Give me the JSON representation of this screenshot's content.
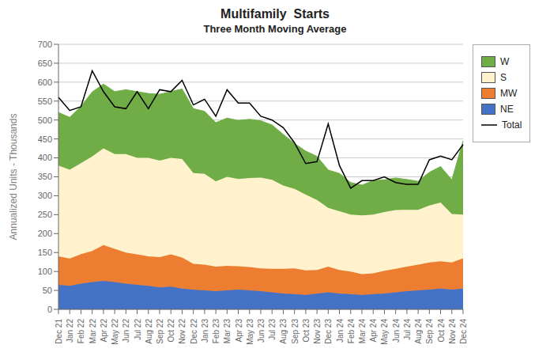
{
  "chart_data": {
    "type": "area",
    "title": "Multifamily  Starts",
    "subtitle": "Three Month Moving Average",
    "ylabel": "Annualized Units - Thousands",
    "stacked": true,
    "grid": true,
    "legend": "right",
    "ylim": [
      0,
      700
    ],
    "yticks": [
      0,
      50,
      100,
      150,
      200,
      250,
      300,
      350,
      400,
      450,
      500,
      550,
      600,
      650,
      700
    ],
    "categories": [
      "Dec 21",
      "Jan 22",
      "Feb 22",
      "Mar 22",
      "Apr 22",
      "May 22",
      "Jun 22",
      "Jul 22",
      "Aug 22",
      "Sep 22",
      "Oct 22",
      "Nov 22",
      "Dec 22",
      "Jan 23",
      "Feb 23",
      "Mar 23",
      "Apr 23",
      "May 23",
      "Jun 23",
      "Jul 23",
      "Aug 23",
      "Sep 23",
      "Oct 23",
      "Nov 23",
      "Dec 23",
      "Jan 24",
      "Feb 24",
      "Mar 24",
      "Apr 24",
      "May 24",
      "Jun 24",
      "Jul 24",
      "Aug 24",
      "Sep 24",
      "Oct 24",
      "Nov 24",
      "Dec 24"
    ],
    "series": [
      {
        "name": "NE",
        "color": "#4472C4",
        "values": [
          65,
          62,
          68,
          72,
          75,
          72,
          68,
          65,
          62,
          58,
          60,
          55,
          52,
          50,
          48,
          50,
          52,
          50,
          48,
          45,
          42,
          40,
          38,
          42,
          45,
          42,
          40,
          38,
          40,
          42,
          45,
          48,
          50,
          52,
          55,
          52,
          55
        ]
      },
      {
        "name": "MW",
        "color": "#ED7D31",
        "values": [
          75,
          72,
          78,
          82,
          95,
          88,
          82,
          80,
          78,
          80,
          85,
          82,
          68,
          68,
          65,
          65,
          62,
          62,
          60,
          62,
          65,
          68,
          65,
          62,
          68,
          62,
          60,
          55,
          55,
          60,
          62,
          65,
          68,
          72,
          72,
          72,
          80
        ]
      },
      {
        "name": "S",
        "color": "#FFF2CC",
        "values": [
          240,
          235,
          240,
          250,
          255,
          250,
          260,
          255,
          260,
          255,
          255,
          260,
          240,
          240,
          225,
          235,
          230,
          235,
          240,
          235,
          220,
          210,
          200,
          185,
          155,
          155,
          150,
          155,
          155,
          155,
          155,
          150,
          145,
          150,
          155,
          128,
          115
        ]
      },
      {
        "name": "W",
        "color": "#70AD47",
        "values": [
          140,
          138,
          150,
          170,
          170,
          165,
          170,
          175,
          170,
          175,
          175,
          185,
          170,
          165,
          155,
          155,
          155,
          155,
          150,
          145,
          135,
          120,
          115,
          115,
          100,
          100,
          85,
          80,
          90,
          85,
          85,
          80,
          75,
          88,
          95,
          90,
          195
        ]
      },
      {
        "name": "Total",
        "color": "#000000",
        "type": "line",
        "values": [
          560,
          525,
          535,
          630,
          575,
          535,
          530,
          575,
          530,
          580,
          575,
          605,
          540,
          555,
          510,
          580,
          545,
          545,
          510,
          500,
          480,
          440,
          385,
          390,
          490,
          380,
          320,
          340,
          340,
          350,
          335,
          330,
          330,
          395,
          405,
          395,
          435
        ]
      }
    ]
  }
}
